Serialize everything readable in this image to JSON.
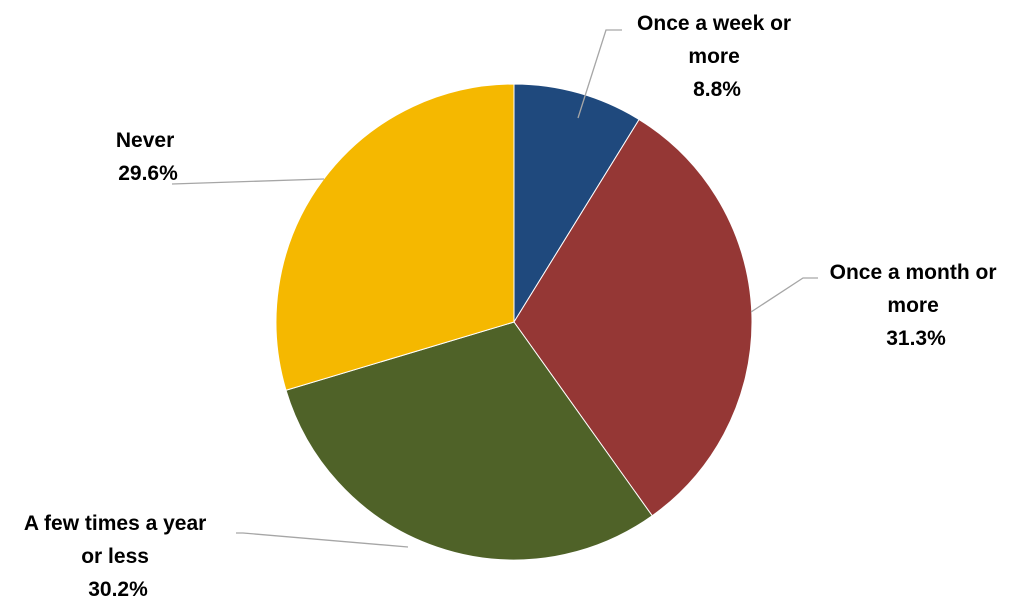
{
  "chart_data": {
    "type": "pie",
    "title": "",
    "start_angle_deg": 0,
    "direction": "clockwise",
    "slices": [
      {
        "label_lines": [
          "Once a week or",
          "more"
        ],
        "value": 8.8,
        "value_label": "8.8%",
        "color": "#1f497d"
      },
      {
        "label_lines": [
          "Once a month or",
          "more"
        ],
        "value": 31.3,
        "value_label": "31.3%",
        "color": "#953735"
      },
      {
        "label_lines": [
          "A few times a year",
          "or less"
        ],
        "value": 30.2,
        "value_label": "30.2%",
        "color": "#4f6228"
      },
      {
        "label_lines": [
          "Never"
        ],
        "value": 29.6,
        "value_label": "29.6%",
        "color": "#f5b800"
      }
    ],
    "legend": "none",
    "data_labels": "outside-with-leader-lines"
  }
}
